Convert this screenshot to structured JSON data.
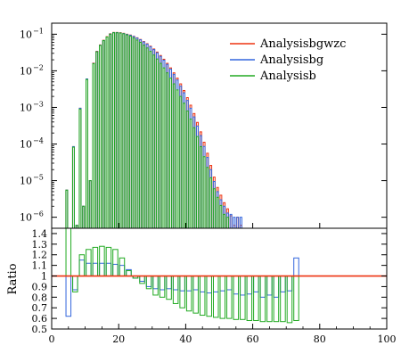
{
  "chart_data": [
    {
      "type": "bar",
      "panel": "main",
      "log_y": true,
      "ylim": [
        5e-07,
        0.2
      ],
      "xlim": [
        0,
        100
      ],
      "bin_width": 1.0,
      "bin_start": 4.0,
      "yticks": [
        {
          "value": 1e-06,
          "mant": "10",
          "exp": "−6"
        },
        {
          "value": 1e-05,
          "mant": "10",
          "exp": "−5"
        },
        {
          "value": 0.0001,
          "mant": "10",
          "exp": "−4"
        },
        {
          "value": 0.001,
          "mant": "10",
          "exp": "−3"
        },
        {
          "value": 0.01,
          "mant": "10",
          "exp": "−2"
        },
        {
          "value": 0.1,
          "mant": "10",
          "exp": "−1"
        }
      ],
      "legend_position": "top-right",
      "series": [
        {
          "name": "Analysisbgwzc",
          "color": "#ee3311",
          "values": [
            5.5e-06,
            4e-07,
            8.5e-05,
            6e-07,
            0.00095,
            2e-06,
            0.006,
            1e-05,
            0.0162,
            0.0341,
            0.051,
            0.0683,
            0.0855,
            0.103,
            0.112,
            0.112,
            0.11,
            0.106,
            0.1,
            0.095,
            0.088,
            0.08,
            0.072,
            0.063,
            0.055,
            0.047,
            0.0395,
            0.0325,
            0.0262,
            0.0207,
            0.016,
            0.012,
            0.0088,
            0.0063,
            0.0044,
            0.0029,
            0.00185,
            0.00115,
            0.00068,
            0.00039,
            0.000215,
            0.000112,
            5.6e-05,
            2.6e-05,
            1.25e-05,
            6.5e-06,
            4e-06,
            2.5e-06,
            1.7e-06,
            1.1e-06,
            6e-07,
            1e-06,
            6e-07
          ]
        },
        {
          "name": "Analysisbg",
          "color": "#3366dd",
          "values": [
            5.5e-06,
            4e-07,
            8.5e-05,
            6e-07,
            0.00095,
            2e-06,
            0.006,
            1e-05,
            0.0158,
            0.0335,
            0.05,
            0.0672,
            0.084,
            0.101,
            0.1105,
            0.1105,
            0.1085,
            0.1045,
            0.0985,
            0.0935,
            0.0865,
            0.0785,
            0.0705,
            0.0615,
            0.0535,
            0.0455,
            0.038,
            0.031,
            0.0248,
            0.0195,
            0.015,
            0.0111,
            0.008,
            0.0056,
            0.0038,
            0.0025,
            0.00155,
            0.00095,
            0.00055,
            0.00031,
            0.00017,
            8.6e-05,
            4.3e-05,
            2e-05,
            9.5e-06,
            5e-06,
            3e-06,
            2e-06,
            1.3e-06,
            1.2e-06,
            1e-06,
            1e-06,
            1e-06
          ]
        },
        {
          "name": "Analysisb",
          "color": "#22aa22",
          "values": [
            5.5e-06,
            4e-07,
            8.2e-05,
            6e-07,
            0.0009,
            2e-06,
            0.0058,
            1e-05,
            0.0156,
            0.033,
            0.0495,
            0.0668,
            0.0838,
            0.1,
            0.1095,
            0.1095,
            0.1075,
            0.103,
            0.096,
            0.089,
            0.079,
            0.069,
            0.06,
            0.05,
            0.042,
            0.034,
            0.027,
            0.021,
            0.016,
            0.012,
            0.0088,
            0.0063,
            0.0044,
            0.003,
            0.002,
            0.0013,
            0.0008,
            0.00048,
            0.00028,
            0.00016,
            8.5e-05,
            4.5e-05,
            2.3e-05,
            1.2e-05,
            6e-06,
            3.5e-06,
            2.1e-06,
            1.2e-06,
            1e-06,
            5e-07,
            5e-07,
            5e-07,
            5e-07
          ]
        }
      ]
    },
    {
      "type": "bar",
      "panel": "ratio",
      "ylabel": "Ratio",
      "ylim": [
        0.5,
        1.45
      ],
      "xlim": [
        0,
        100
      ],
      "reference_line": 1.0,
      "yticks": [
        "0.5",
        "0.6",
        "0.7",
        "0.8",
        "0.9",
        "1",
        "1.1",
        "1.2",
        "1.3",
        "1.4"
      ],
      "xticks": [
        "0",
        "20",
        "40",
        "60",
        "80",
        "100"
      ],
      "bin_width": 2.0,
      "bin_start": 4.0,
      "series": [
        {
          "name": "Analysisbg",
          "color": "#3366dd",
          "values": [
            0.62,
            0.87,
            1.15,
            1.12,
            1.12,
            1.12,
            1.12,
            1.11,
            1.1,
            1.06,
            0.98,
            0.95,
            0.9,
            0.88,
            0.87,
            0.88,
            0.87,
            0.86,
            0.86,
            0.87,
            0.85,
            0.84,
            0.85,
            0.86,
            0.87,
            0.83,
            0.82,
            0.83,
            0.85,
            0.8,
            0.82,
            0.8,
            0.85,
            0.86,
            1.17
          ]
        },
        {
          "name": "Analysisb",
          "color": "#22aa22",
          "values": [
            1.45,
            0.85,
            1.2,
            1.25,
            1.27,
            1.28,
            1.27,
            1.25,
            1.17,
            1.05,
            0.98,
            0.93,
            0.88,
            0.82,
            0.8,
            0.78,
            0.74,
            0.7,
            0.67,
            0.65,
            0.63,
            0.62,
            0.61,
            0.6,
            0.6,
            0.59,
            0.59,
            0.58,
            0.58,
            0.57,
            0.57,
            0.57,
            0.57,
            0.56,
            0.58
          ]
        }
      ]
    }
  ]
}
